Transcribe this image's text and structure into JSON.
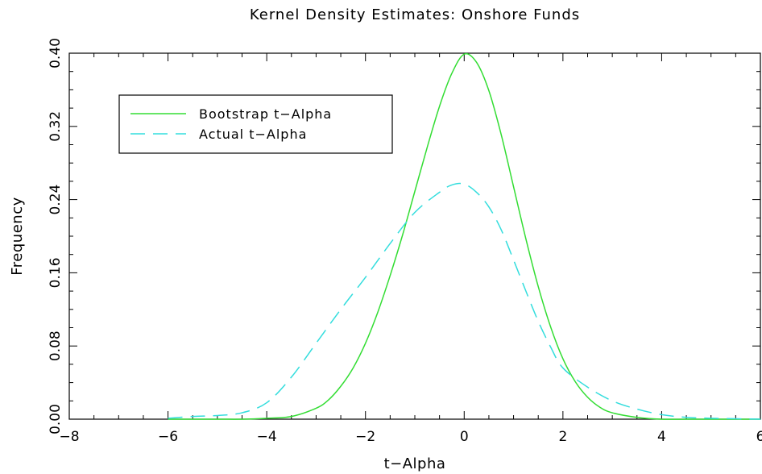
{
  "chart_data": {
    "type": "line",
    "title": "Kernel Density Estimates: Onshore Funds",
    "xlabel": "t−Alpha",
    "ylabel": "Frequency",
    "xlim": [
      -8,
      6
    ],
    "ylim": [
      0,
      0.4
    ],
    "x_ticks": [
      -8,
      -6,
      -4,
      -2,
      0,
      2,
      4,
      6
    ],
    "x_tick_labels": [
      "−8",
      "−6",
      "−4",
      "−2",
      "0",
      "2",
      "4",
      "6"
    ],
    "y_ticks": [
      0,
      0.08,
      0.16,
      0.24,
      0.32,
      0.4
    ],
    "y_tick_labels": [
      "0.00",
      "0.08",
      "0.16",
      "0.24",
      "0.32",
      "0.40"
    ],
    "grid": false,
    "legend_position": "top-left",
    "series": [
      {
        "name": "Bootstrap t−Alpha",
        "color": "#33dd33",
        "style": "solid",
        "x": [
          -6,
          -5,
          -4.5,
          -4,
          -3.5,
          -3,
          -2.75,
          -2.5,
          -2.25,
          -2,
          -1.75,
          -1.5,
          -1.25,
          -1,
          -0.75,
          -0.5,
          -0.25,
          0,
          0.25,
          0.5,
          0.75,
          1,
          1.25,
          1.5,
          1.75,
          2,
          2.25,
          2.5,
          2.75,
          3,
          3.5,
          4,
          4.5,
          5,
          6
        ],
        "y": [
          0.0,
          0.0,
          0.0,
          0.001,
          0.003,
          0.012,
          0.021,
          0.036,
          0.056,
          0.083,
          0.117,
          0.157,
          0.201,
          0.249,
          0.297,
          0.342,
          0.378,
          0.399,
          0.39,
          0.359,
          0.311,
          0.254,
          0.197,
          0.145,
          0.101,
          0.066,
          0.041,
          0.024,
          0.013,
          0.007,
          0.002,
          0.0,
          0.0,
          0.0,
          0.0
        ]
      },
      {
        "name": "Actual t−Alpha",
        "color": "#33dddd",
        "style": "dashed",
        "x": [
          -6,
          -5.5,
          -5,
          -4.5,
          -4,
          -3.5,
          -3,
          -2.5,
          -2,
          -1.5,
          -1,
          -0.5,
          -0.25,
          0,
          0.25,
          0.5,
          0.75,
          1,
          1.25,
          1.5,
          1.75,
          2,
          2.5,
          3,
          3.5,
          4,
          4.5,
          5,
          6
        ],
        "y": [
          0.001,
          0.003,
          0.004,
          0.007,
          0.018,
          0.046,
          0.083,
          0.12,
          0.155,
          0.192,
          0.226,
          0.248,
          0.256,
          0.257,
          0.248,
          0.232,
          0.207,
          0.174,
          0.14,
          0.107,
          0.079,
          0.056,
          0.035,
          0.02,
          0.011,
          0.005,
          0.002,
          0.001,
          0.0
        ]
      }
    ]
  }
}
